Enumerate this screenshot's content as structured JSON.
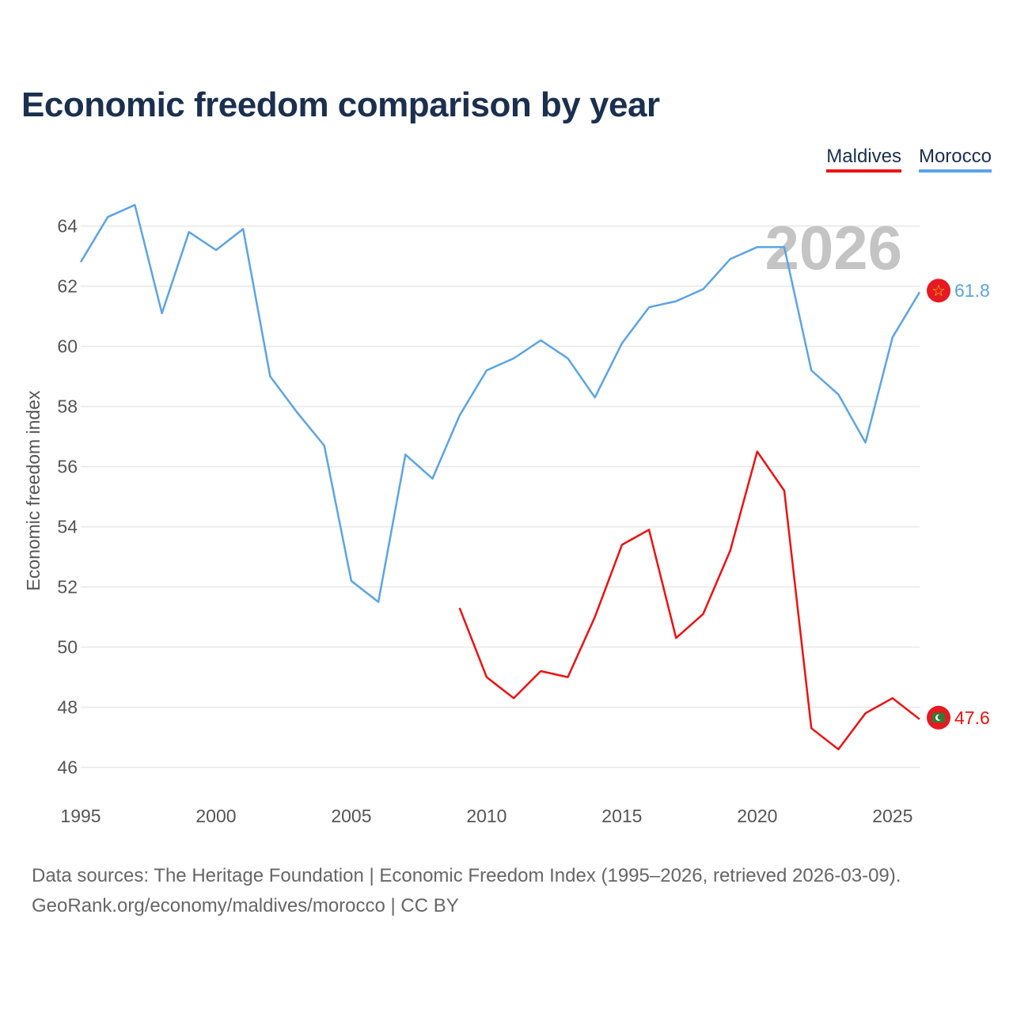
{
  "title": "Economic freedom comparison by year",
  "legend": {
    "maldives": "Maldives",
    "morocco": "Morocco"
  },
  "footer": {
    "line1": "Data sources: The Heritage Foundation | Economic Freedom Index (1995–2026, retrieved 2026-03-09).",
    "line2": "GeoRank.org/economy/maldives/morocco | CC BY"
  },
  "chart_data": {
    "type": "line",
    "title": "Economic freedom comparison by year",
    "ylabel": "Economic freedom index",
    "xlabel": "",
    "xlim": [
      1995,
      2026
    ],
    "ylim": [
      45.2,
      65.2
    ],
    "x_ticks": [
      1995,
      2000,
      2005,
      2010,
      2015,
      2020,
      2025
    ],
    "y_ticks": [
      46,
      48,
      50,
      52,
      54,
      56,
      58,
      60,
      62,
      64
    ],
    "watermark_year": "2026",
    "grid": true,
    "series": [
      {
        "name": "Morocco",
        "color": "#5ba4e6",
        "end_label": "61.8",
        "flag_icon": "morocco-flag-icon",
        "x": [
          1995,
          1996,
          1997,
          1998,
          1999,
          2000,
          2001,
          2002,
          2003,
          2004,
          2005,
          2006,
          2007,
          2008,
          2009,
          2010,
          2011,
          2012,
          2013,
          2014,
          2015,
          2016,
          2017,
          2018,
          2019,
          2020,
          2021,
          2022,
          2023,
          2024,
          2025,
          2026
        ],
        "values": [
          62.8,
          64.3,
          64.7,
          61.1,
          63.8,
          63.2,
          63.9,
          59.0,
          57.8,
          56.7,
          52.2,
          51.5,
          56.4,
          55.6,
          57.7,
          59.2,
          59.6,
          60.2,
          59.6,
          58.3,
          60.1,
          61.3,
          61.5,
          61.9,
          62.9,
          63.3,
          63.3,
          59.2,
          58.4,
          56.8,
          60.3,
          61.8
        ]
      },
      {
        "name": "Maldives",
        "color": "#ee1111",
        "end_label": "47.6",
        "flag_icon": "maldives-flag-icon",
        "x": [
          2009,
          2010,
          2011,
          2012,
          2013,
          2014,
          2015,
          2016,
          2017,
          2018,
          2019,
          2020,
          2021,
          2022,
          2023,
          2024,
          2025,
          2026
        ],
        "values": [
          51.3,
          49.0,
          48.3,
          49.2,
          49.0,
          51.0,
          53.4,
          53.9,
          50.3,
          51.1,
          53.2,
          56.5,
          55.2,
          47.3,
          46.6,
          47.8,
          48.3,
          47.6
        ]
      }
    ]
  }
}
